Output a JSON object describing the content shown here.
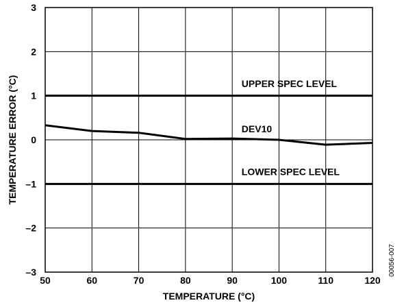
{
  "chart_data": {
    "type": "line",
    "title": "",
    "xlabel": "TEMPERATURE (°C)",
    "ylabel": "TEMPERATURE ERROR (°C)",
    "xlim": [
      50,
      120
    ],
    "ylim": [
      -3,
      3
    ],
    "x_ticks": [
      50,
      60,
      70,
      80,
      90,
      100,
      110,
      120
    ],
    "y_ticks": [
      3,
      2,
      1,
      0,
      -1,
      -2,
      -3
    ],
    "x_tick_labels": [
      "50",
      "60",
      "70",
      "80",
      "90",
      "100",
      "110",
      "120"
    ],
    "y_tick_labels": [
      "3",
      "2",
      "1",
      "0",
      "–1",
      "–2",
      "–3"
    ],
    "grid": true,
    "series": [
      {
        "name": "DEV10",
        "x": [
          50,
          60,
          70,
          80,
          90,
          100,
          110,
          120
        ],
        "y": [
          0.33,
          0.2,
          0.16,
          0.02,
          0.03,
          0.0,
          -0.11,
          -0.07
        ]
      }
    ],
    "reference_lines": [
      {
        "label": "UPPER SPEC LEVEL",
        "y": 1
      },
      {
        "label": "LOWER SPEC LEVEL",
        "y": -1
      }
    ],
    "annotations": [
      {
        "text": "DEV10",
        "x": 92,
        "y": 0.17
      },
      {
        "text": "UPPER SPEC LEVEL",
        "x": 92,
        "y": 1.2
      },
      {
        "text": "LOWER SPEC LEVEL",
        "x": 92,
        "y": -0.8
      }
    ],
    "figure_id": "00056-007"
  }
}
